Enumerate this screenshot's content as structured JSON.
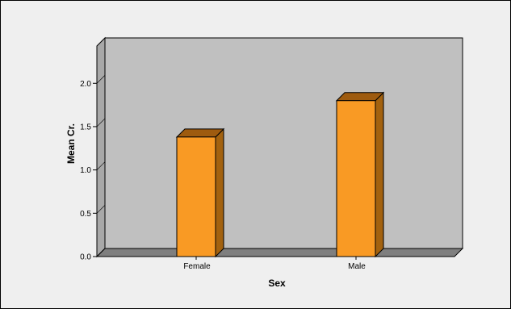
{
  "chart_data": {
    "type": "bar",
    "style": "3d",
    "categories": [
      "Female",
      "Male"
    ],
    "values": [
      1.38,
      1.8
    ],
    "xlabel": "Sex",
    "ylabel": "Mean Cr.",
    "ylim": [
      0,
      2.2
    ],
    "yticks": [
      "0.0",
      "0.5",
      "1.0",
      "1.5",
      "2.0"
    ],
    "ytick_values": [
      0,
      0.5,
      1.0,
      1.5,
      2.0
    ],
    "grid": false,
    "colors": {
      "bar_front": "#f99a24",
      "bar_top": "#9e5b0f",
      "bar_side": "#a3620f",
      "back_wall": "#c0c0c0",
      "floor": "#7f7f7f",
      "side_wall": "#a8a8a8",
      "page_background": "#efefef"
    }
  }
}
